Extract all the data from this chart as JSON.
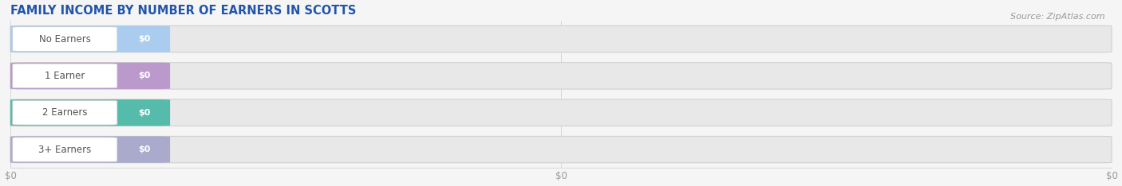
{
  "title": "FAMILY INCOME BY NUMBER OF EARNERS IN SCOTTS",
  "source": "Source: ZipAtlas.com",
  "categories": [
    "No Earners",
    "1 Earner",
    "2 Earners",
    "3+ Earners"
  ],
  "values": [
    0,
    0,
    0,
    0
  ],
  "bar_colors": [
    "#aaccee",
    "#bb99cc",
    "#55bbaa",
    "#aaaacc"
  ],
  "background_color": "#f5f5f5",
  "plot_bg_color": "#f5f5f5",
  "bar_bg_color": "#e8e8e8",
  "bar_bg_edge_color": "#d0d0d0",
  "title_color": "#2255aa",
  "title_fontsize": 10.5,
  "label_fontsize": 8.5,
  "source_fontsize": 8,
  "category_text_color": "#555555",
  "value_text_color": "#ffffff",
  "tick_color": "#999999",
  "grid_color": "#cccccc"
}
